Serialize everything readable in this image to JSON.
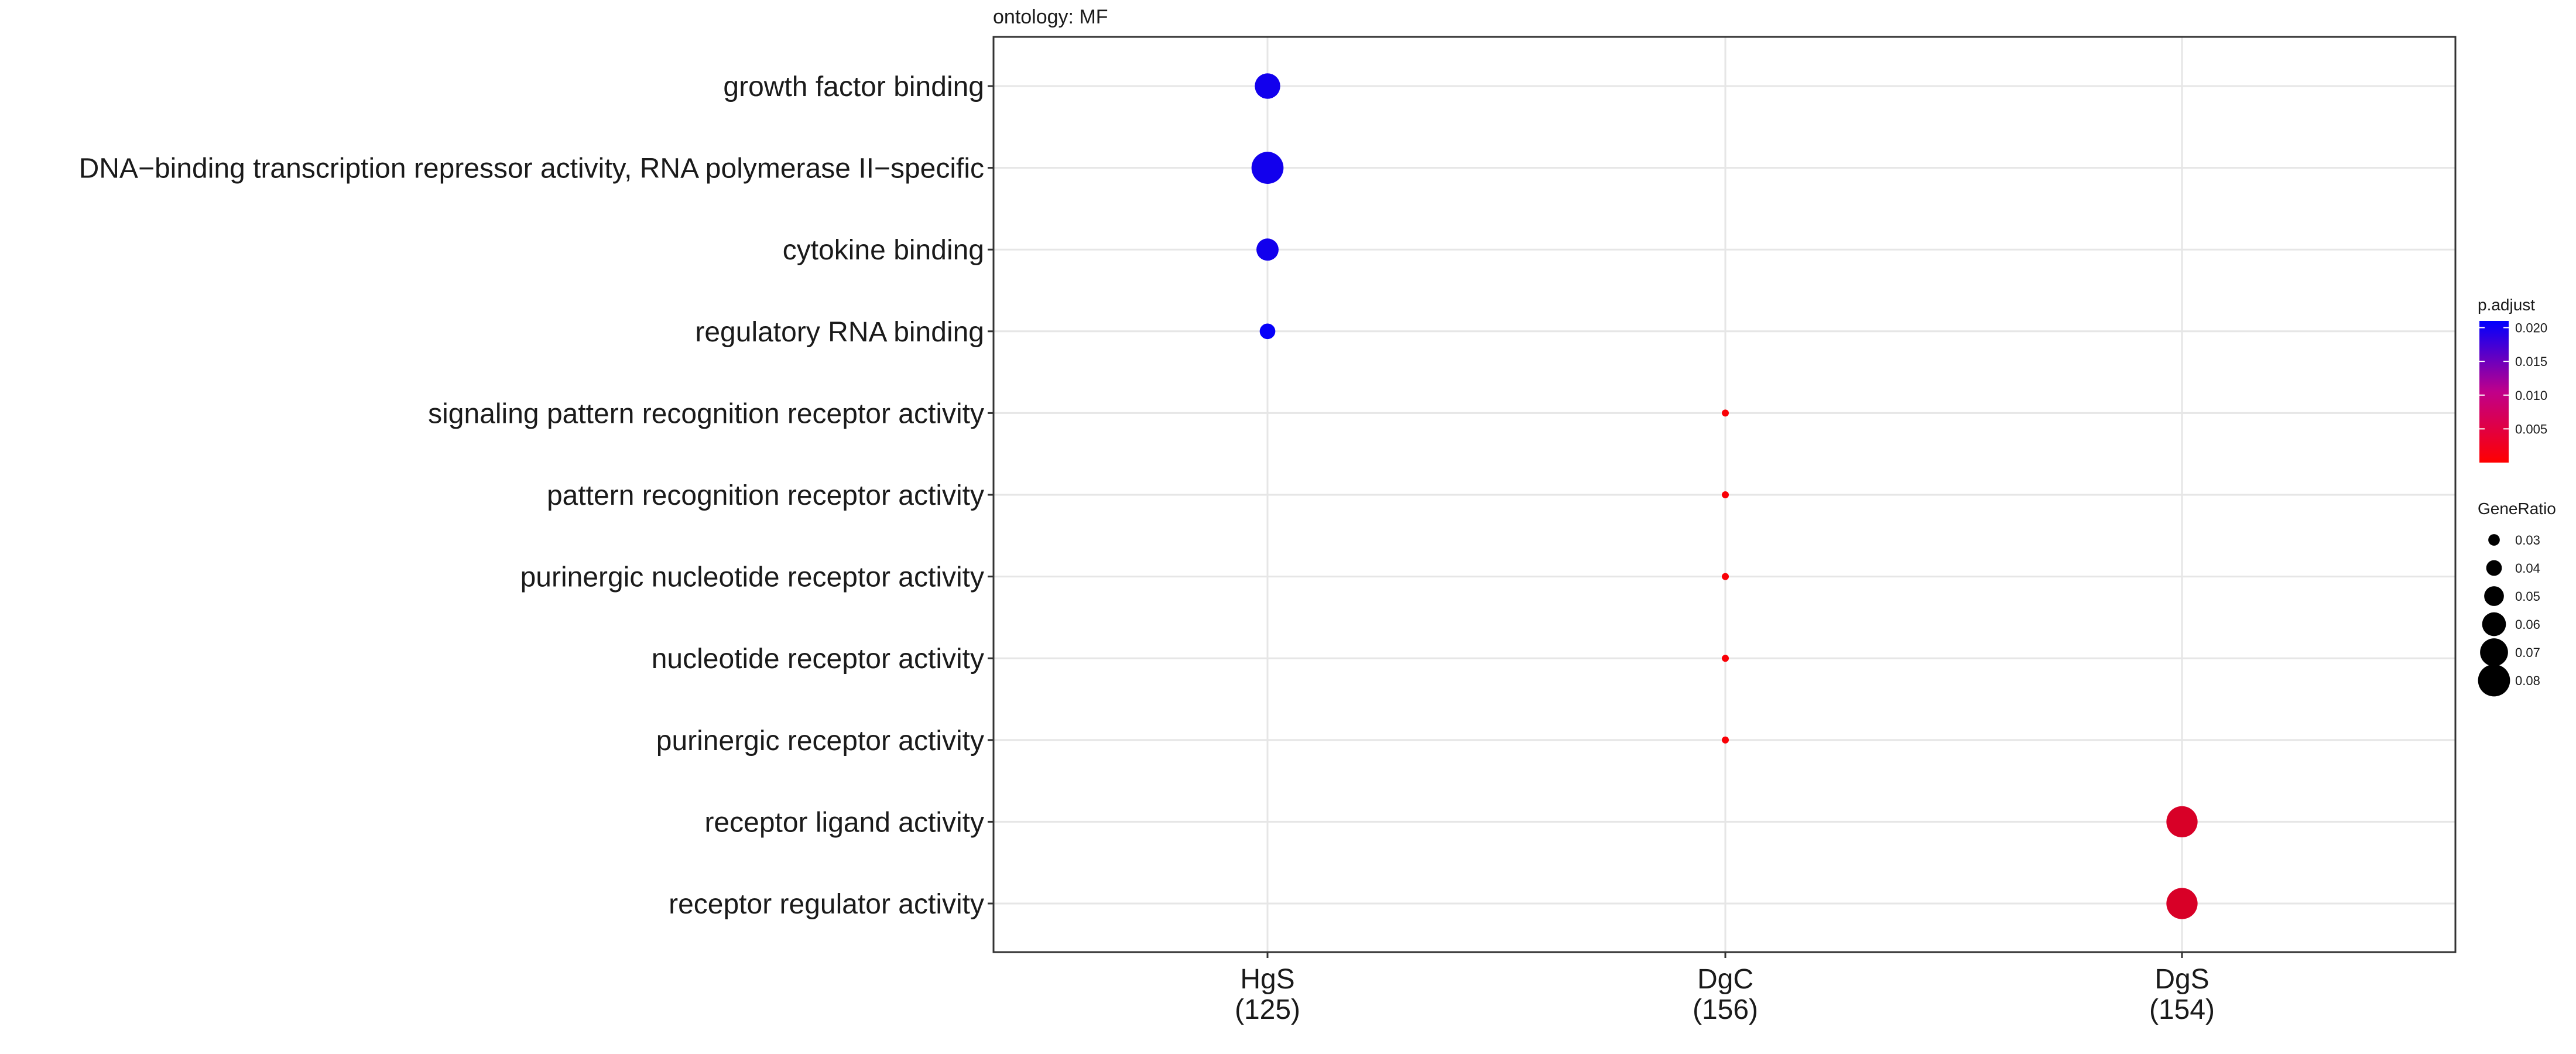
{
  "chart_data": {
    "type": "scatter",
    "facet_label": "ontology: MF",
    "categories_x": [
      {
        "name": "HgS",
        "count": "(125)"
      },
      {
        "name": "DgC",
        "count": "(156)"
      },
      {
        "name": "DgS",
        "count": "(154)"
      }
    ],
    "categories_y": [
      "growth factor binding",
      "DNA−binding transcription repressor activity, RNA polymerase II−specific",
      "cytokine binding",
      "regulatory RNA binding",
      "signaling pattern recognition receptor activity",
      "pattern recognition receptor activity",
      "purinergic nucleotide receptor activity",
      "nucleotide receptor activity",
      "purinergic receptor activity",
      "receptor ligand activity",
      "receptor regulator activity"
    ],
    "points": [
      {
        "x": "HgS",
        "y": "growth factor binding",
        "gene_ratio": 0.064,
        "p_adjust": 0.0195
      },
      {
        "x": "HgS",
        "y": "DNA−binding transcription repressor activity, RNA polymerase II−specific",
        "gene_ratio": 0.08,
        "p_adjust": 0.0195
      },
      {
        "x": "HgS",
        "y": "cytokine binding",
        "gene_ratio": 0.056,
        "p_adjust": 0.0195
      },
      {
        "x": "HgS",
        "y": "regulatory RNA binding",
        "gene_ratio": 0.04,
        "p_adjust": 0.0205
      },
      {
        "x": "DgC",
        "y": "signaling pattern recognition receptor activity",
        "gene_ratio": 0.019,
        "p_adjust": 0.0005
      },
      {
        "x": "DgC",
        "y": "pattern recognition receptor activity",
        "gene_ratio": 0.019,
        "p_adjust": 0.0005
      },
      {
        "x": "DgC",
        "y": "purinergic nucleotide receptor activity",
        "gene_ratio": 0.019,
        "p_adjust": 0.0005
      },
      {
        "x": "DgC",
        "y": "nucleotide receptor activity",
        "gene_ratio": 0.019,
        "p_adjust": 0.0005
      },
      {
        "x": "DgC",
        "y": "purinergic receptor activity",
        "gene_ratio": 0.019,
        "p_adjust": 0.0005
      },
      {
        "x": "DgS",
        "y": "receptor ligand activity",
        "gene_ratio": 0.078,
        "p_adjust": 0.0032
      },
      {
        "x": "DgS",
        "y": "receptor regulator activity",
        "gene_ratio": 0.078,
        "p_adjust": 0.0032
      }
    ],
    "legend_color": {
      "title": "p.adjust",
      "ticks": [
        "0.020",
        "0.015",
        "0.010",
        "0.005"
      ],
      "tick_values": [
        0.02,
        0.015,
        0.01,
        0.005
      ],
      "range": [
        0.0,
        0.021
      ],
      "low_color": "#ff0000",
      "high_color": "#0000ff"
    },
    "legend_size": {
      "title": "GeneRatio",
      "ticks": [
        "0.03",
        "0.04",
        "0.05",
        "0.06",
        "0.07",
        "0.08"
      ],
      "tick_values": [
        0.03,
        0.04,
        0.05,
        0.06,
        0.07,
        0.08
      ]
    },
    "grid": true,
    "legend_position": "right"
  }
}
